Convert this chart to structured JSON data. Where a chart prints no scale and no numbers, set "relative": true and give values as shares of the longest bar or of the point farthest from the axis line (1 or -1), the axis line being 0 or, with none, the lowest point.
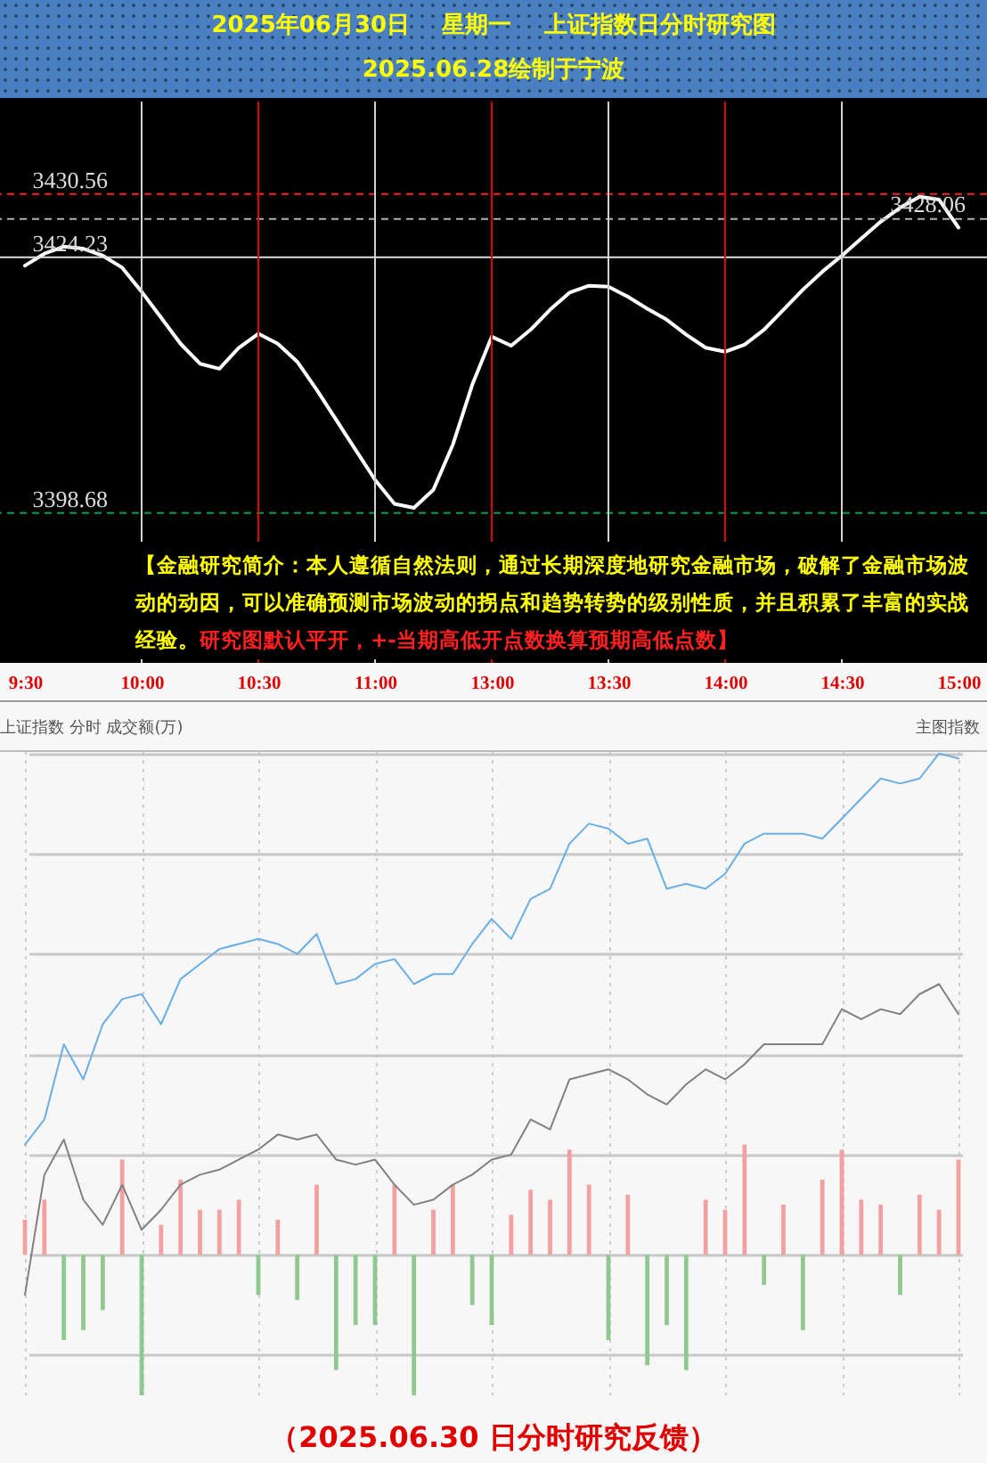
{
  "chart_data": [
    {
      "type": "line",
      "title": "2025年06月30日    星期一    上证指数日分时研究图",
      "subtitle": "2025.06.28绘制于宁波",
      "annotations": [
        "【金融研究简介：本人遵循自然法则，通过长期深度地研究金融市场，破解了金融市场波动的动因，可以准确预测市场波动的拐点和趋势转势的级别性质，并且积累了丰富的实战经验。",
        "研究图默认平开，+-当期高低开点数换算预期高低点数】"
      ],
      "categories": [
        "9:30",
        null,
        null,
        null,
        null,
        null,
        "10:00",
        null,
        null,
        null,
        null,
        null,
        "10:30",
        null,
        null,
        null,
        null,
        null,
        "11:00",
        null,
        null,
        null,
        null,
        null,
        "13:00",
        null,
        null,
        null,
        null,
        null,
        "13:30",
        null,
        null,
        null,
        null,
        null,
        "14:00",
        null,
        null,
        null,
        null,
        null,
        "14:30",
        null,
        null,
        null,
        null,
        null,
        "15:00"
      ],
      "tick_labels": "y",
      "ylim": [
        3383.7,
        3439.8
      ],
      "yticks": [
        3398.68,
        3424.23,
        3430.56
      ],
      "ref_lines": [
        {
          "axis": "y",
          "value": 3430.56,
          "label": null,
          "color": "#ff2020",
          "line_style": "dashed"
        },
        {
          "axis": "y",
          "value": 3428.06,
          "label": "3428.06",
          "color": "#b0b0b0",
          "line_style": "dashed"
        },
        {
          "axis": "y",
          "value": 3424.23,
          "label": null,
          "color": "#e0e0e0",
          "line_style": "solid"
        },
        {
          "axis": "y",
          "value": 3398.68,
          "label": null,
          "color": "#00a050",
          "line_style": "dashed"
        },
        {
          "axis": "x",
          "value": "10:00",
          "label": null,
          "color": "#d0d0d0",
          "line_style": "solid"
        },
        {
          "axis": "x",
          "value": "10:30",
          "label": null,
          "color": "#e00000",
          "line_style": "solid"
        },
        {
          "axis": "x",
          "value": "11:00",
          "label": null,
          "color": "#d0d0d0",
          "line_style": "solid"
        },
        {
          "axis": "x",
          "value": "13:00",
          "label": null,
          "color": "#e00000",
          "line_style": "solid"
        },
        {
          "axis": "x",
          "value": "13:30",
          "label": null,
          "color": "#d0d0d0",
          "line_style": "solid"
        },
        {
          "axis": "x",
          "value": "14:00",
          "label": null,
          "color": "#e00000",
          "line_style": "solid"
        },
        {
          "axis": "x",
          "value": "14:30",
          "label": null,
          "color": "#d0d0d0",
          "line_style": "solid"
        }
      ],
      "series": [
        {
          "color": "#ffffff",
          "values": [
            3423.4,
            3424.6,
            3425.3,
            3425.1,
            3424.4,
            3423.2,
            3420.8,
            3418.2,
            3415.6,
            3413.6,
            3413.1,
            3415.2,
            3416.6,
            3415.6,
            3413.8,
            3411.0,
            3408.0,
            3405.0,
            3402.0,
            3399.6,
            3399.2,
            3401.0,
            3405.5,
            3411.5,
            3416.3,
            3415.4,
            3417.0,
            3419.0,
            3420.7,
            3421.4,
            3421.3,
            3420.3,
            3419.1,
            3418.0,
            3416.5,
            3415.2,
            3414.8,
            3415.5,
            3417.0,
            3419.0,
            3421.0,
            3422.8,
            3424.4,
            3426.1,
            3427.8,
            3429.2,
            3430.3,
            3430.0,
            3427.2
          ]
        }
      ]
    },
    {
      "type": "line",
      "relative": true,
      "annotations": [
        "上证指数 分时 成交额(万)",
        "主图指数",
        "（2025.06.30 日分时研究反馈）"
      ],
      "categories": [
        "9:30",
        null,
        null,
        null,
        null,
        null,
        "10:00",
        null,
        null,
        null,
        null,
        null,
        "10:30",
        null,
        null,
        null,
        null,
        null,
        "11:00",
        null,
        null,
        null,
        null,
        null,
        "13:00",
        null,
        null,
        null,
        null,
        null,
        "13:30",
        null,
        null,
        null,
        null,
        null,
        "14:00",
        null,
        null,
        null,
        null,
        null,
        "14:30",
        null,
        null,
        null,
        null,
        null,
        "15:00"
      ],
      "tick_labels": "x",
      "grid": true,
      "series": [
        {
          "type": "bar",
          "values": [
            0.07,
            0.11,
            -0.17,
            -0.15,
            -0.11,
            0.19,
            -0.28,
            0.06,
            0.15,
            0.09,
            0.09,
            0.11,
            -0.08,
            0.07,
            -0.09,
            0.14,
            -0.23,
            -0.14,
            -0.14,
            0.14,
            -0.28,
            0.09,
            0.14,
            -0.1,
            -0.14,
            0.08,
            0.13,
            0.11,
            0.21,
            0.14,
            -0.17,
            0.12,
            -0.22,
            -0.14,
            -0.23,
            0.11,
            0.09,
            0.22,
            -0.06,
            0.1,
            -0.15,
            0.15,
            0.21,
            0.11,
            0.1,
            -0.08,
            0.12,
            0.09,
            0.19
          ],
          "colors": [
            "#f4a0a0",
            "#f4a0a0",
            "#90c890",
            "#90c890",
            "#90c890",
            "#f4a0a0",
            "#90c890",
            "#f4a0a0",
            "#f4a0a0",
            "#f4a0a0",
            "#f4a0a0",
            "#f4a0a0",
            "#90c890",
            "#f4a0a0",
            "#90c890",
            "#f4a0a0",
            "#90c890",
            "#90c890",
            "#90c890",
            "#f4a0a0",
            "#90c890",
            "#f4a0a0",
            "#f4a0a0",
            "#90c890",
            "#90c890",
            "#f4a0a0",
            "#f4a0a0",
            "#f4a0a0",
            "#f4a0a0",
            "#f4a0a0",
            "#90c890",
            "#f4a0a0",
            "#90c890",
            "#90c890",
            "#90c890",
            "#f4a0a0",
            "#f4a0a0",
            "#f4a0a0",
            "#90c890",
            "#f4a0a0",
            "#90c890",
            "#f4a0a0",
            "#f4a0a0",
            "#f4a0a0",
            "#f4a0a0",
            "#90c890",
            "#f4a0a0",
            "#f4a0a0",
            "#f4a0a0"
          ]
        },
        {
          "color": "#6aaee6",
          "values": [
            0.22,
            0.27,
            0.42,
            0.35,
            0.46,
            0.51,
            0.52,
            0.46,
            0.55,
            0.58,
            0.61,
            0.62,
            0.63,
            0.62,
            0.6,
            0.64,
            0.54,
            0.55,
            0.58,
            0.59,
            0.54,
            0.56,
            0.56,
            0.62,
            0.67,
            0.63,
            0.71,
            0.73,
            0.82,
            0.86,
            0.85,
            0.82,
            0.83,
            0.73,
            0.74,
            0.73,
            0.76,
            0.82,
            0.84,
            0.84,
            0.84,
            0.83,
            0.87,
            0.91,
            0.95,
            0.94,
            0.95,
            1,
            0.99
          ]
        },
        {
          "color": "#808080",
          "values": [
            -0.08,
            0.16,
            0.23,
            0.11,
            0.06,
            0.14,
            0.05,
            0.09,
            0.14,
            0.16,
            0.17,
            0.19,
            0.21,
            0.24,
            0.23,
            0.24,
            0.19,
            0.18,
            0.19,
            0.14,
            0.1,
            0.11,
            0.14,
            0.16,
            0.19,
            0.2,
            0.27,
            0.25,
            0.35,
            0.36,
            0.37,
            0.35,
            0.32,
            0.3,
            0.34,
            0.37,
            0.35,
            0.38,
            0.42,
            0.42,
            0.42,
            0.42,
            0.49,
            0.47,
            0.49,
            0.48,
            0.52,
            0.54,
            0.48
          ]
        }
      ]
    }
  ]
}
